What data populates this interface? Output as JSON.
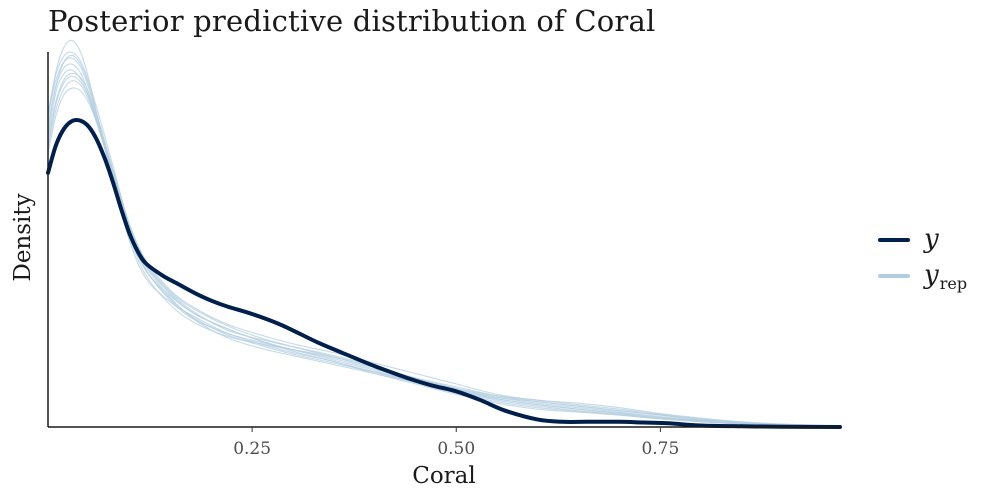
{
  "chart_data": {
    "type": "line",
    "title": "Posterior predictive distribution of Coral",
    "xlabel": "Coral",
    "ylabel": "Density",
    "xlim": [
      0.0,
      0.97
    ],
    "ylim": [
      0,
      2.55
    ],
    "x_ticks": [
      0.25,
      0.5,
      0.75
    ],
    "x_tick_labels": [
      "0.25",
      "0.50",
      "0.75"
    ],
    "legend_position": "right",
    "colors": {
      "y": "#011f4b",
      "yrep": "#b3cde0"
    },
    "legend": [
      {
        "key": "y",
        "label": "y",
        "sub": ""
      },
      {
        "key": "yrep",
        "label": "y",
        "sub": "rep"
      }
    ],
    "series": [
      {
        "name": "y",
        "x": [
          0.0,
          0.01,
          0.02,
          0.03,
          0.04,
          0.05,
          0.06,
          0.07,
          0.08,
          0.09,
          0.1,
          0.11,
          0.12,
          0.14,
          0.16,
          0.18,
          0.2,
          0.22,
          0.25,
          0.28,
          0.3,
          0.33,
          0.36,
          0.4,
          0.44,
          0.47,
          0.5,
          0.53,
          0.56,
          0.6,
          0.63,
          0.66,
          0.7,
          0.73,
          0.76,
          0.8,
          0.85,
          0.9,
          0.97
        ],
        "y": [
          1.71,
          1.9,
          2.01,
          2.06,
          2.06,
          2.02,
          1.93,
          1.8,
          1.64,
          1.46,
          1.3,
          1.18,
          1.1,
          1.02,
          0.96,
          0.9,
          0.85,
          0.81,
          0.76,
          0.7,
          0.65,
          0.57,
          0.5,
          0.41,
          0.33,
          0.28,
          0.24,
          0.18,
          0.11,
          0.05,
          0.035,
          0.035,
          0.035,
          0.03,
          0.025,
          0.01,
          0.005,
          0.002,
          0.0
        ]
      },
      {
        "name": "yrep",
        "x": [
          0.0,
          0.01,
          0.02,
          0.03,
          0.04,
          0.05,
          0.06,
          0.08,
          0.1,
          0.12,
          0.15,
          0.18,
          0.22,
          0.26,
          0.3,
          0.35,
          0.4,
          0.45,
          0.5,
          0.55,
          0.6,
          0.65,
          0.7,
          0.75,
          0.8,
          0.85,
          0.9,
          0.97
        ],
        "y": [
          2.0,
          2.3,
          2.46,
          2.5,
          2.44,
          2.3,
          2.1,
          1.7,
          1.3,
          1.05,
          0.88,
          0.76,
          0.66,
          0.58,
          0.52,
          0.45,
          0.38,
          0.3,
          0.24,
          0.19,
          0.15,
          0.12,
          0.09,
          0.06,
          0.04,
          0.025,
          0.015,
          0.005
        ]
      },
      {
        "name": "yrep",
        "x": [
          0.0,
          0.01,
          0.02,
          0.03,
          0.04,
          0.05,
          0.06,
          0.08,
          0.1,
          0.12,
          0.15,
          0.18,
          0.22,
          0.26,
          0.3,
          0.35,
          0.4,
          0.45,
          0.5,
          0.55,
          0.6,
          0.65,
          0.7,
          0.75,
          0.8,
          0.85,
          0.9,
          0.97
        ],
        "y": [
          2.08,
          2.4,
          2.56,
          2.6,
          2.52,
          2.34,
          2.1,
          1.65,
          1.25,
          1.0,
          0.84,
          0.74,
          0.63,
          0.56,
          0.5,
          0.44,
          0.36,
          0.29,
          0.22,
          0.16,
          0.12,
          0.1,
          0.08,
          0.055,
          0.035,
          0.02,
          0.01,
          0.004
        ]
      },
      {
        "name": "yrep",
        "x": [
          0.0,
          0.01,
          0.02,
          0.03,
          0.04,
          0.05,
          0.06,
          0.08,
          0.1,
          0.12,
          0.15,
          0.18,
          0.22,
          0.26,
          0.3,
          0.35,
          0.4,
          0.45,
          0.5,
          0.55,
          0.6,
          0.65,
          0.7,
          0.75,
          0.8,
          0.85,
          0.9,
          0.97
        ],
        "y": [
          1.9,
          2.18,
          2.32,
          2.36,
          2.32,
          2.22,
          2.06,
          1.72,
          1.36,
          1.1,
          0.9,
          0.77,
          0.65,
          0.59,
          0.54,
          0.48,
          0.41,
          0.33,
          0.26,
          0.2,
          0.17,
          0.14,
          0.11,
          0.08,
          0.05,
          0.03,
          0.015,
          0.005
        ]
      },
      {
        "name": "yrep",
        "x": [
          0.0,
          0.01,
          0.02,
          0.03,
          0.04,
          0.05,
          0.06,
          0.08,
          0.1,
          0.12,
          0.15,
          0.18,
          0.22,
          0.26,
          0.3,
          0.35,
          0.4,
          0.45,
          0.5,
          0.55,
          0.6,
          0.65,
          0.7,
          0.75,
          0.8,
          0.85,
          0.9,
          0.97
        ],
        "y": [
          2.12,
          2.38,
          2.5,
          2.52,
          2.46,
          2.32,
          2.14,
          1.75,
          1.34,
          1.06,
          0.86,
          0.73,
          0.62,
          0.55,
          0.49,
          0.43,
          0.37,
          0.31,
          0.25,
          0.2,
          0.16,
          0.13,
          0.1,
          0.07,
          0.045,
          0.03,
          0.015,
          0.005
        ]
      },
      {
        "name": "yrep",
        "x": [
          0.0,
          0.01,
          0.02,
          0.03,
          0.04,
          0.05,
          0.06,
          0.08,
          0.1,
          0.12,
          0.15,
          0.18,
          0.22,
          0.26,
          0.3,
          0.35,
          0.4,
          0.45,
          0.5,
          0.55,
          0.6,
          0.65,
          0.7,
          0.75,
          0.8,
          0.85,
          0.9,
          0.97
        ],
        "y": [
          1.84,
          2.1,
          2.24,
          2.28,
          2.26,
          2.18,
          2.04,
          1.7,
          1.36,
          1.12,
          0.92,
          0.8,
          0.69,
          0.62,
          0.56,
          0.5,
          0.43,
          0.36,
          0.29,
          0.22,
          0.18,
          0.16,
          0.13,
          0.09,
          0.06,
          0.035,
          0.02,
          0.006
        ]
      },
      {
        "name": "yrep",
        "x": [
          0.0,
          0.01,
          0.02,
          0.03,
          0.04,
          0.05,
          0.06,
          0.08,
          0.1,
          0.12,
          0.15,
          0.18,
          0.22,
          0.26,
          0.3,
          0.35,
          0.4,
          0.45,
          0.5,
          0.55,
          0.6,
          0.65,
          0.7,
          0.75,
          0.8,
          0.85,
          0.9,
          0.97
        ],
        "y": [
          1.96,
          2.26,
          2.38,
          2.4,
          2.34,
          2.22,
          2.05,
          1.68,
          1.32,
          1.08,
          0.87,
          0.72,
          0.6,
          0.53,
          0.48,
          0.42,
          0.36,
          0.3,
          0.24,
          0.18,
          0.14,
          0.11,
          0.085,
          0.06,
          0.04,
          0.025,
          0.012,
          0.004
        ]
      },
      {
        "name": "yrep",
        "x": [
          0.0,
          0.01,
          0.02,
          0.03,
          0.04,
          0.05,
          0.06,
          0.08,
          0.1,
          0.12,
          0.15,
          0.18,
          0.22,
          0.26,
          0.3,
          0.35,
          0.4,
          0.45,
          0.5,
          0.55,
          0.6,
          0.65,
          0.7,
          0.75,
          0.8,
          0.85,
          0.9,
          0.97
        ],
        "y": [
          2.04,
          2.3,
          2.42,
          2.44,
          2.38,
          2.24,
          2.06,
          1.66,
          1.28,
          1.02,
          0.82,
          0.7,
          0.61,
          0.56,
          0.52,
          0.47,
          0.4,
          0.32,
          0.26,
          0.21,
          0.18,
          0.15,
          0.12,
          0.085,
          0.055,
          0.03,
          0.015,
          0.005
        ]
      },
      {
        "name": "yrep",
        "x": [
          0.0,
          0.01,
          0.02,
          0.03,
          0.04,
          0.05,
          0.06,
          0.08,
          0.1,
          0.12,
          0.15,
          0.18,
          0.22,
          0.26,
          0.3,
          0.35,
          0.4,
          0.45,
          0.5,
          0.55,
          0.6,
          0.65,
          0.7,
          0.75,
          0.8,
          0.85,
          0.9,
          0.97
        ],
        "y": [
          1.94,
          2.2,
          2.34,
          2.38,
          2.35,
          2.25,
          2.08,
          1.7,
          1.33,
          1.09,
          0.89,
          0.76,
          0.66,
          0.58,
          0.51,
          0.44,
          0.37,
          0.3,
          0.23,
          0.17,
          0.13,
          0.105,
          0.08,
          0.055,
          0.035,
          0.02,
          0.01,
          0.003
        ]
      },
      {
        "name": "yrep",
        "x": [
          0.0,
          0.01,
          0.02,
          0.03,
          0.04,
          0.05,
          0.06,
          0.08,
          0.1,
          0.12,
          0.15,
          0.18,
          0.22,
          0.26,
          0.3,
          0.35,
          0.4,
          0.45,
          0.5,
          0.55,
          0.6,
          0.65,
          0.7,
          0.75,
          0.8,
          0.85,
          0.9,
          0.97
        ],
        "y": [
          2.1,
          2.34,
          2.46,
          2.48,
          2.42,
          2.28,
          2.1,
          1.72,
          1.34,
          1.06,
          0.85,
          0.72,
          0.63,
          0.57,
          0.52,
          0.46,
          0.39,
          0.31,
          0.25,
          0.19,
          0.15,
          0.12,
          0.095,
          0.065,
          0.04,
          0.025,
          0.012,
          0.004
        ]
      },
      {
        "name": "yrep",
        "x": [
          0.0,
          0.01,
          0.02,
          0.03,
          0.04,
          0.05,
          0.06,
          0.08,
          0.1,
          0.12,
          0.15,
          0.18,
          0.22,
          0.26,
          0.3,
          0.35,
          0.4,
          0.45,
          0.5,
          0.55,
          0.6,
          0.65,
          0.7,
          0.75,
          0.8,
          0.85,
          0.9,
          0.97
        ],
        "y": [
          1.88,
          2.14,
          2.28,
          2.33,
          2.3,
          2.2,
          2.05,
          1.71,
          1.36,
          1.11,
          0.91,
          0.79,
          0.68,
          0.6,
          0.54,
          0.47,
          0.4,
          0.33,
          0.27,
          0.21,
          0.17,
          0.14,
          0.11,
          0.08,
          0.05,
          0.03,
          0.015,
          0.005
        ]
      }
    ]
  }
}
